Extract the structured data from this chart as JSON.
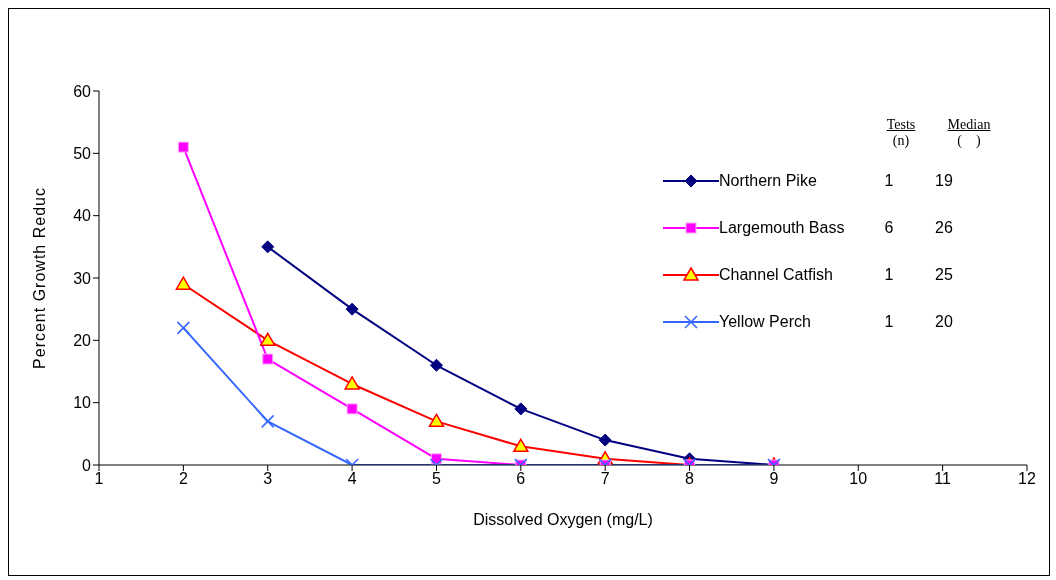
{
  "chart_data": {
    "type": "line",
    "xlabel": "Dissolved Oxygen (mg/L)",
    "ylabel": "Percent Growth Reduc",
    "xlim": [
      1,
      12
    ],
    "xticks": [
      1,
      2,
      3,
      4,
      5,
      6,
      7,
      8,
      9,
      10,
      11,
      12
    ],
    "ylim": [
      0,
      60
    ],
    "yticks": [
      0,
      10,
      20,
      30,
      40,
      50,
      60
    ],
    "grid": false,
    "legend": "right",
    "line_style": "solid",
    "series": [
      {
        "name": "Northern Pike",
        "color": "#000080",
        "marker": "diamond",
        "x": [
          3,
          4,
          5,
          6,
          7,
          8,
          9
        ],
        "values": [
          35,
          25,
          16,
          9,
          4,
          1,
          0
        ]
      },
      {
        "name": "Largemouth Bass",
        "color": "#ff00ff",
        "marker": "square",
        "x": [
          2,
          3,
          4,
          5,
          6,
          7,
          8,
          9
        ],
        "values": [
          51,
          17,
          9,
          1,
          0,
          0,
          0,
          0
        ]
      },
      {
        "name": "Channel Catfish",
        "color": "#ff0000",
        "marker": "triangle",
        "x": [
          2,
          3,
          4,
          5,
          6,
          7,
          8,
          9
        ],
        "values": [
          29,
          20,
          13,
          7,
          3,
          1,
          0,
          0
        ]
      },
      {
        "name": "Yellow Perch",
        "color": "#3366ff",
        "marker": "cross",
        "x": [
          2,
          3,
          4,
          5,
          6,
          7,
          8,
          9
        ],
        "values": [
          22,
          7,
          0,
          0,
          0,
          0,
          0,
          0
        ]
      }
    ],
    "annotations": [
      "Tests",
      "(n)",
      "Median",
      "(    )",
      "1",
      "19",
      "6",
      "26",
      "1",
      "25",
      "1",
      "20"
    ]
  }
}
